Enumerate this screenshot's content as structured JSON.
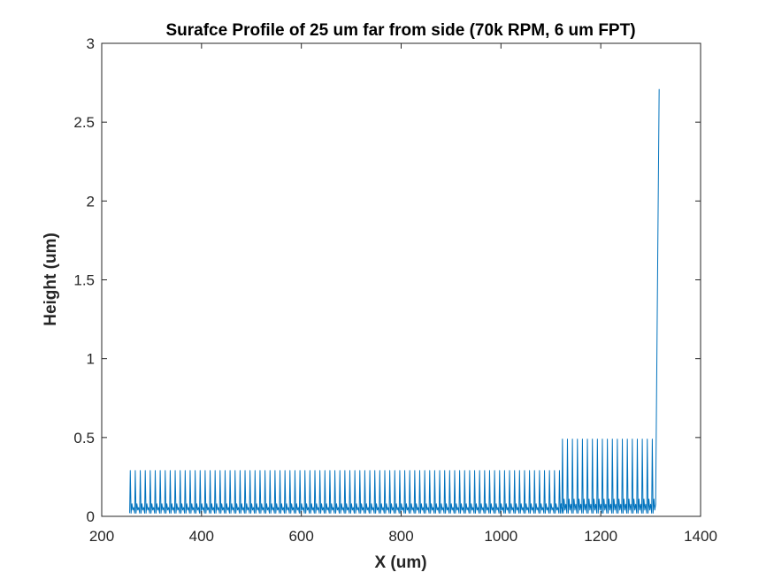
{
  "chart_data": {
    "type": "line",
    "title": "Surafce Profile of 25 um far from side (70k RPM, 6 um FPT)",
    "xlabel": "X (um)",
    "ylabel": "Height (um)",
    "xlim": [
      200,
      1400
    ],
    "ylim": [
      0,
      3
    ],
    "xticks": [
      200,
      400,
      600,
      800,
      1000,
      1200,
      1400
    ],
    "yticks": [
      0,
      0.5,
      1,
      1.5,
      2,
      2.5,
      3
    ],
    "xtick_labels": [
      "200",
      "400",
      "600",
      "800",
      "1000",
      "1200",
      "1400"
    ],
    "ytick_labels": [
      "0",
      "0.5",
      "1",
      "1.5",
      "2",
      "2.5",
      "3"
    ],
    "grid": false,
    "legend": "none",
    "series": [
      {
        "color": "#0072BD",
        "segments": [
          {
            "x_start": 256,
            "x_end": 1122,
            "period": 10,
            "peak": 0.29,
            "trough": 0.02,
            "mid_peak": 0.08
          },
          {
            "x_start": 1122,
            "x_end": 1310,
            "period": 10,
            "peak": 0.49,
            "trough": 0.02,
            "mid_peak": 0.11
          }
        ],
        "final_rise": {
          "x": [
            1310,
            1317
          ],
          "y": [
            0.1,
            2.71
          ]
        }
      }
    ]
  }
}
